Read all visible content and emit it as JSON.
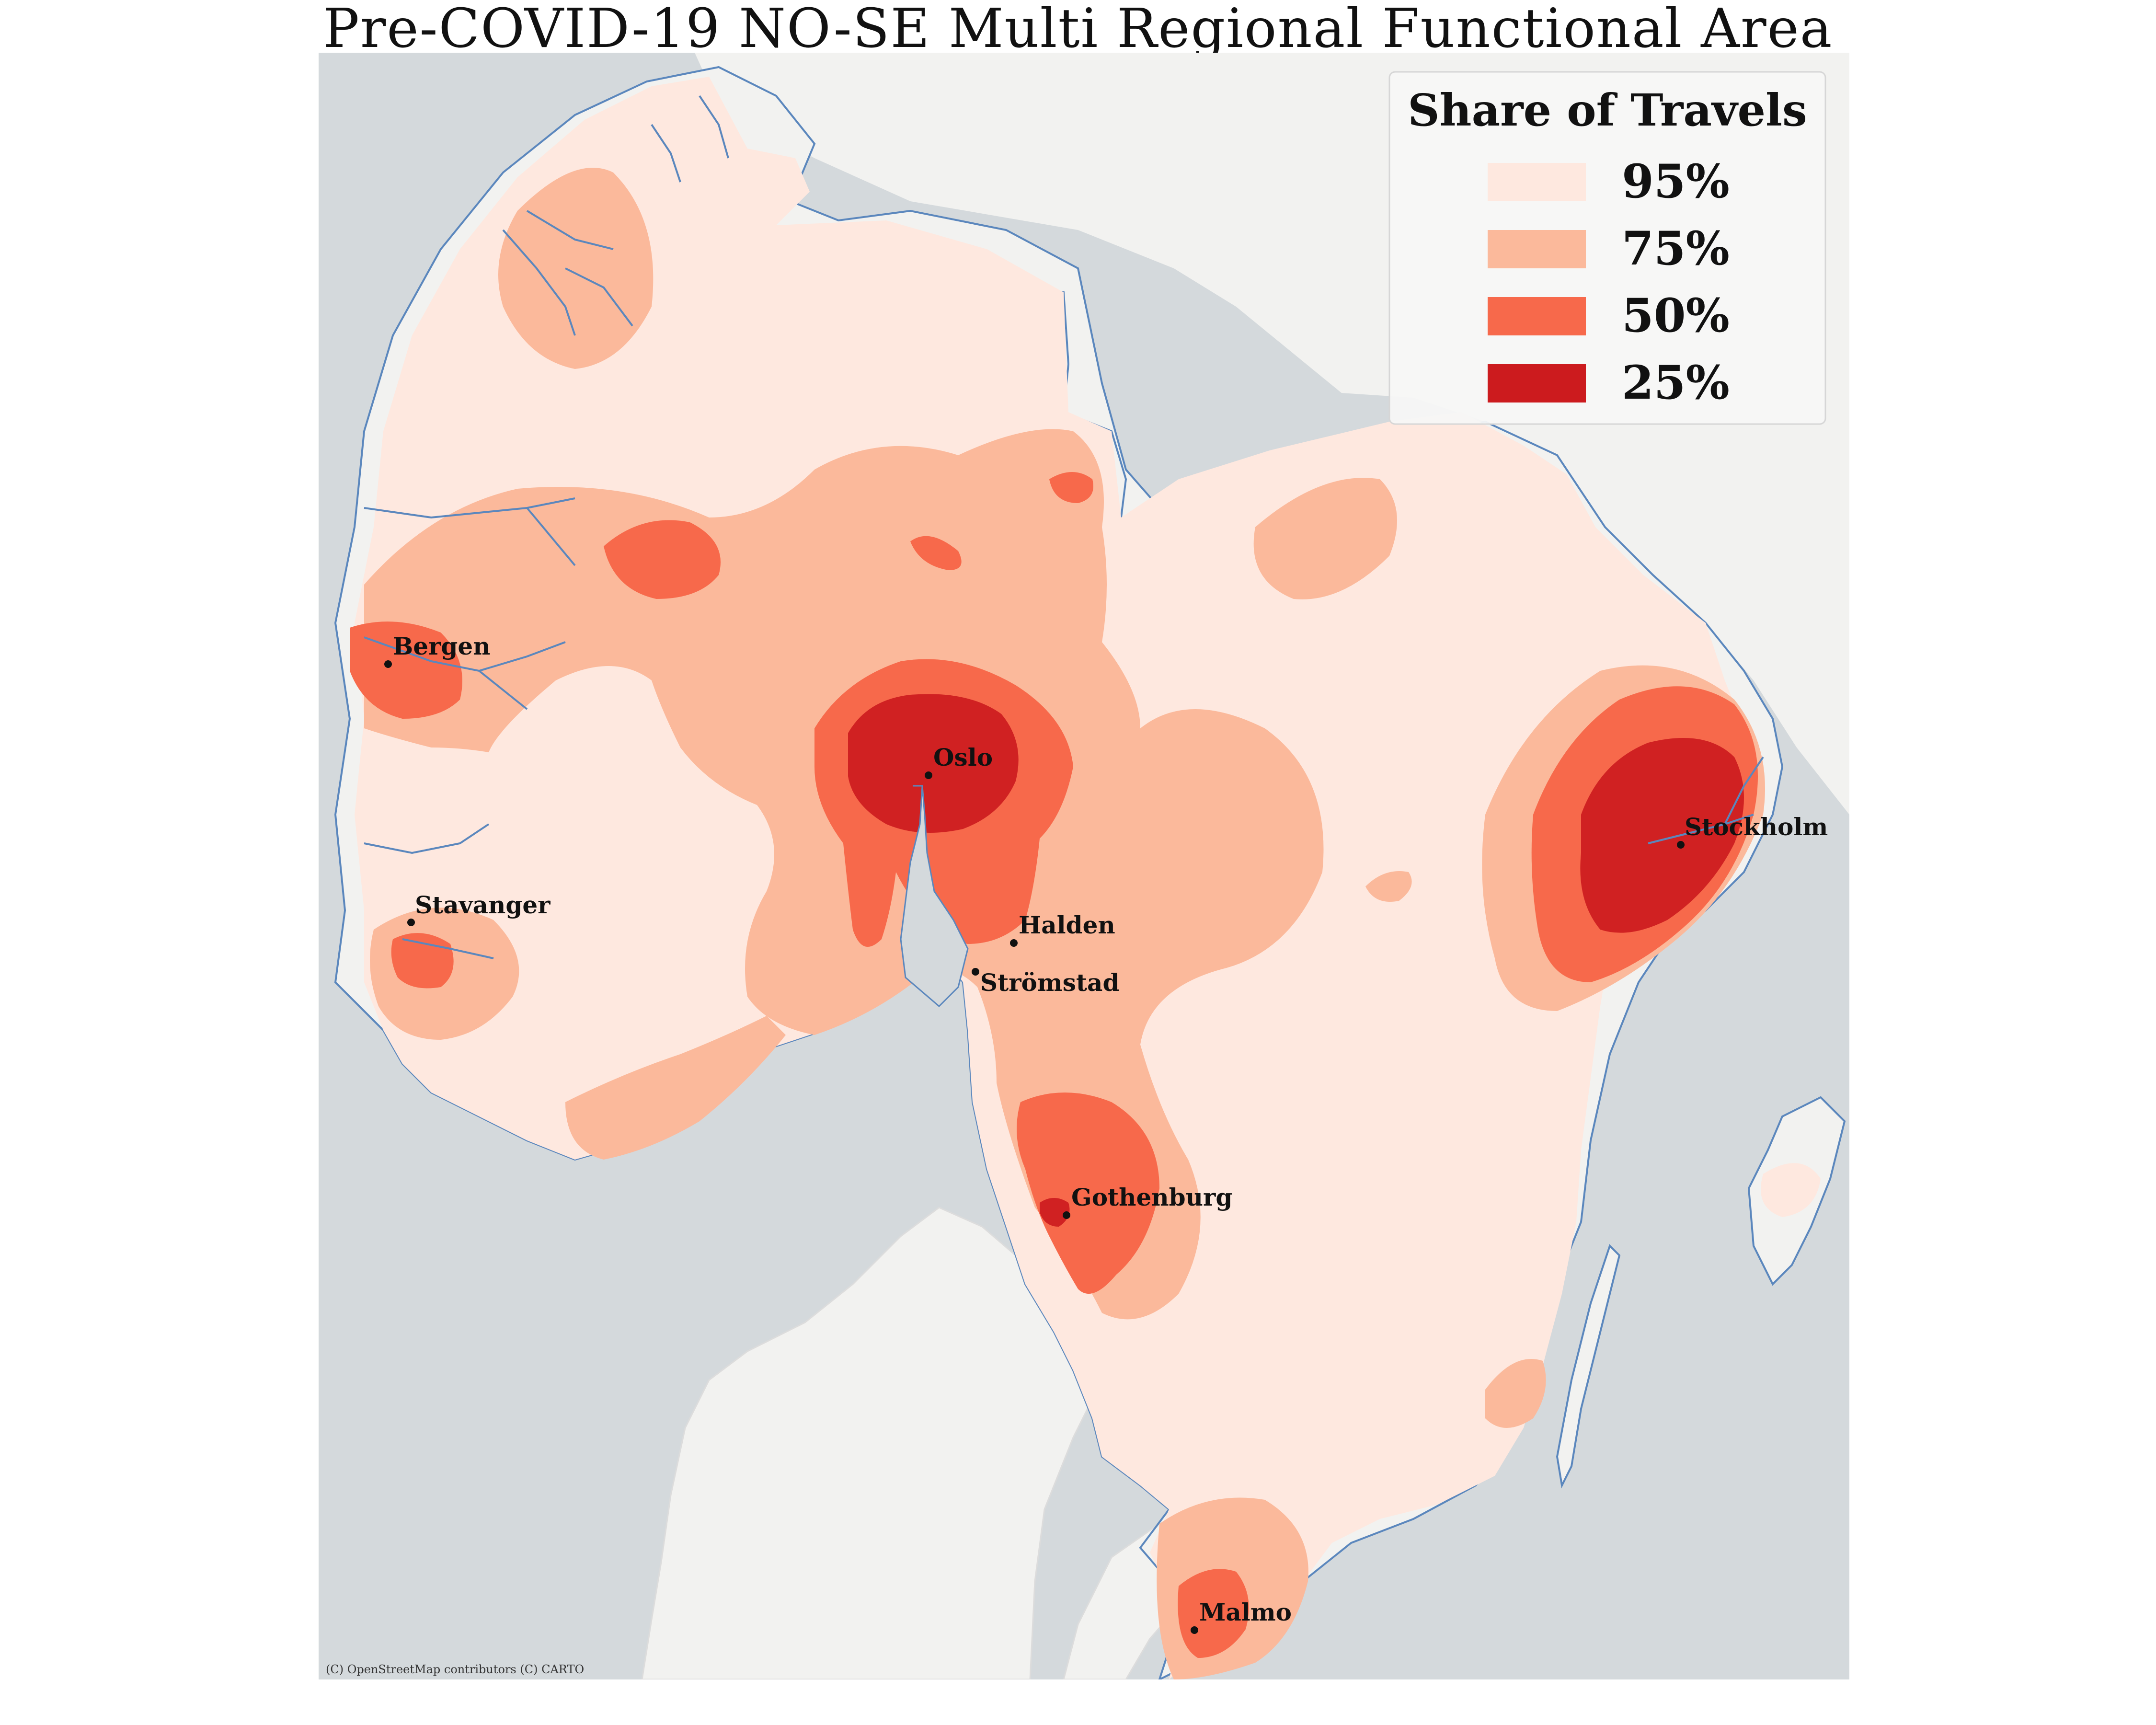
{
  "title": "Pre-COVID-19 NO-SE Multi Regional Functional Area",
  "legend": {
    "title": "Share of Travels",
    "items": [
      {
        "label": "95%",
        "color": "#fee8df"
      },
      {
        "label": "75%",
        "color": "#fbb99b"
      },
      {
        "label": "50%",
        "color": "#f7694b"
      },
      {
        "label": "25%",
        "color": "#cc1b1e"
      }
    ]
  },
  "cities": [
    {
      "name": "Bergen"
    },
    {
      "name": "Oslo"
    },
    {
      "name": "Stavanger"
    },
    {
      "name": "Halden"
    },
    {
      "name": "Strömstad"
    },
    {
      "name": "Stockholm"
    },
    {
      "name": "Gothenburg"
    },
    {
      "name": "Malmo"
    }
  ],
  "attribution": "(C) OpenStreetMap contributors (C) CARTO",
  "colors": {
    "sea": "#d4d9dc",
    "land": "#f2f2f0",
    "coast": "#5b87bd"
  }
}
